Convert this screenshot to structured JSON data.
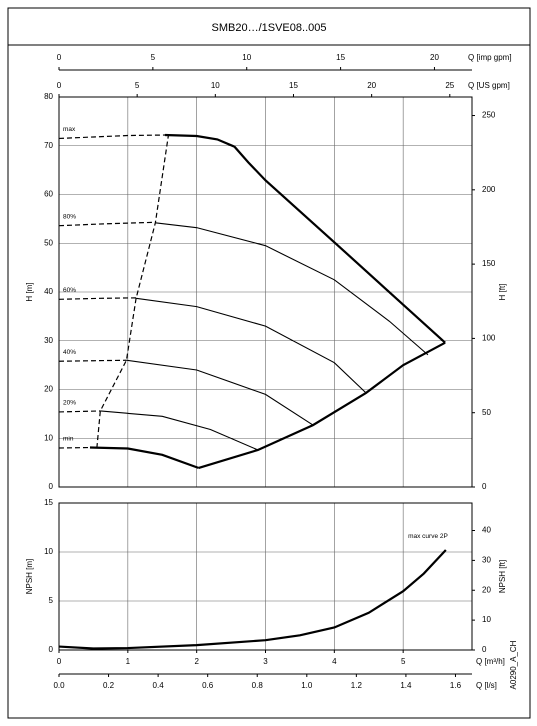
{
  "chart_data": [
    {
      "type": "line",
      "title": "SMB20…/1SVE08..005",
      "ylabel": "H [m]",
      "ylim": [
        0,
        80
      ],
      "yticks": [
        0,
        10,
        20,
        30,
        40,
        50,
        60,
        70,
        80
      ],
      "y2label": "H [ft]",
      "y2lim": [
        0,
        262.47
      ],
      "y2ticks": [
        0,
        50,
        100,
        150,
        200,
        250
      ],
      "xlim": [
        0,
        6
      ],
      "xticks": [
        0,
        1,
        2,
        3,
        4,
        5
      ],
      "top_axes": [
        {
          "label": "Q [imp gpm]",
          "lim": [
            0,
            22.0
          ],
          "ticks": [
            0,
            5,
            10,
            15,
            20
          ]
        },
        {
          "label": "Q [US gpm]",
          "lim": [
            0,
            26.42
          ],
          "ticks": [
            0,
            5,
            10,
            15,
            20,
            25
          ]
        }
      ],
      "grid": true,
      "series": [
        {
          "name": "max",
          "style": "dashed",
          "x": [
            0,
            0.5,
            1.0,
            1.54
          ],
          "values": [
            71.5,
            71.8,
            72.1,
            72.2
          ]
        },
        {
          "style": "thick",
          "x": [
            1.54,
            2.0,
            2.3,
            2.55,
            2.75,
            3.0,
            4.0,
            5.0,
            5.61
          ],
          "values": [
            72.2,
            72.0,
            71.3,
            69.8,
            66.6,
            62.9,
            50.2,
            37.4,
            29.6
          ]
        },
        {
          "name": "80%",
          "style": "dashed",
          "x": [
            0,
            0.7,
            1.4
          ],
          "values": [
            53.6,
            54.0,
            54.3
          ]
        },
        {
          "style": "thin",
          "x": [
            1.4,
            2.0,
            3.0,
            4.0,
            4.8,
            5.36
          ],
          "values": [
            54.2,
            53.2,
            49.5,
            42.5,
            34.0,
            27.1
          ]
        },
        {
          "name": "60%",
          "style": "dashed",
          "x": [
            0,
            0.6,
            1.12
          ],
          "values": [
            38.5,
            38.7,
            38.8
          ]
        },
        {
          "style": "thin",
          "x": [
            1.12,
            2.0,
            3.0,
            4.0,
            4.46
          ],
          "values": [
            38.7,
            37.0,
            33.0,
            25.5,
            19.3
          ]
        },
        {
          "name": "40%",
          "style": "dashed",
          "x": [
            0,
            0.5,
            0.98
          ],
          "values": [
            25.8,
            25.9,
            26.0
          ]
        },
        {
          "style": "thin",
          "x": [
            0.98,
            2.0,
            3.0,
            3.69
          ],
          "values": [
            26.0,
            24.0,
            19.0,
            12.7
          ]
        },
        {
          "name": "20%",
          "style": "dashed",
          "x": [
            0,
            0.6
          ],
          "values": [
            15.4,
            15.6
          ]
        },
        {
          "style": "thin",
          "x": [
            0.6,
            1.5,
            2.2,
            2.89
          ],
          "values": [
            15.6,
            14.5,
            11.8,
            7.6
          ]
        },
        {
          "name": "min",
          "style": "dashed",
          "x": [
            0,
            0.45
          ],
          "values": [
            8.0,
            8.1
          ]
        },
        {
          "style": "thick",
          "x": [
            0.45,
            1.0,
            1.5,
            2.03
          ],
          "values": [
            8.1,
            7.9,
            6.6,
            3.9
          ]
        },
        {
          "style": "thick",
          "x": [
            2.03,
            2.89,
            3.69,
            4.46,
            5.0,
            5.61
          ],
          "values": [
            3.9,
            7.6,
            12.7,
            19.3,
            25.0,
            29.6
          ]
        },
        {
          "style": "dashed",
          "x": [
            0.55,
            0.6,
            0.98,
            1.12,
            1.4,
            1.59
          ],
          "values": [
            8.0,
            15.6,
            26.0,
            38.7,
            54.2,
            72.2
          ]
        }
      ]
    },
    {
      "type": "line",
      "ylabel": "NPSH [m]",
      "ylim": [
        0,
        15
      ],
      "yticks": [
        0,
        5,
        10,
        15
      ],
      "y2label": "NPSH [ft]",
      "y2lim": [
        0,
        49.21
      ],
      "y2ticks": [
        0,
        10,
        20,
        30,
        40
      ],
      "xlabel": "Q [m³/h]",
      "xlim": [
        0,
        6
      ],
      "xticks": [
        0,
        1,
        2,
        3,
        4,
        5
      ],
      "x2label": "Q [l/s]",
      "x2lim": [
        0,
        1.6667
      ],
      "x2ticks": [
        {
          "value": 0,
          "label": "0.0"
        },
        0.2,
        0.4,
        0.6,
        0.8,
        {
          "value": 1,
          "label": "1.0"
        },
        1.2,
        1.4,
        1.6
      ],
      "grid": true,
      "note": "A0290_A_CH",
      "series": [
        {
          "name": "max curve 2P",
          "style": "thick",
          "label_at": "end",
          "x": [
            0,
            0.5,
            1,
            2,
            3,
            3.5,
            4,
            4.5,
            5,
            5.3,
            5.62
          ],
          "values": [
            0.35,
            0.15,
            0.2,
            0.5,
            1.0,
            1.5,
            2.3,
            3.8,
            6.0,
            7.8,
            10.2
          ]
        }
      ]
    }
  ]
}
